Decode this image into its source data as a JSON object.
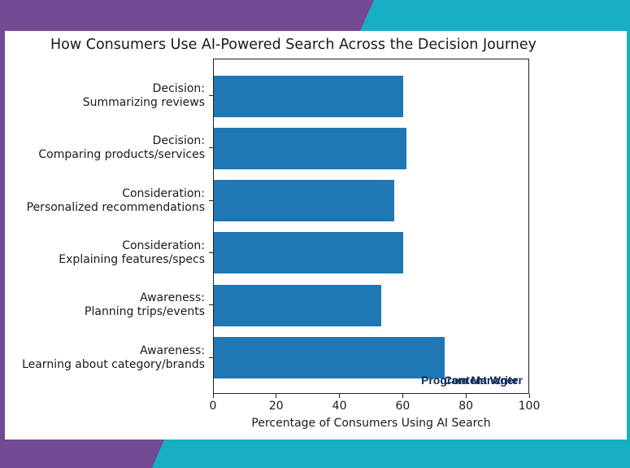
{
  "colors": {
    "background_left": "#734a94",
    "background_right": "#17afc4",
    "panel": "#ffffff",
    "bar": "#1f77b4",
    "watermark": "#0e2f5c"
  },
  "watermark": {
    "text_a": "Program Manager",
    "text_b": "Content Writer"
  },
  "chart_data": {
    "type": "bar",
    "orientation": "horizontal",
    "title": "How Consumers Use AI-Powered Search Across the Decision Journey",
    "xlabel": "Percentage of Consumers Using AI Search",
    "ylabel": "",
    "xlim": [
      0,
      100
    ],
    "xticks": [
      "0",
      "20",
      "40",
      "60",
      "80",
      "100"
    ],
    "grid": false,
    "legend": null,
    "categories": [
      {
        "stage": "Decision:",
        "activity": "Summarizing reviews"
      },
      {
        "stage": "Decision:",
        "activity": "Comparing products/services"
      },
      {
        "stage": "Consideration:",
        "activity": "Personalized recommendations"
      },
      {
        "stage": "Consideration:",
        "activity": "Explaining features/specs"
      },
      {
        "stage": "Awareness:",
        "activity": "Planning trips/events"
      },
      {
        "stage": "Awareness:",
        "activity": "Learning about category/brands"
      }
    ],
    "values": [
      60,
      61,
      57,
      60,
      53,
      73
    ]
  }
}
